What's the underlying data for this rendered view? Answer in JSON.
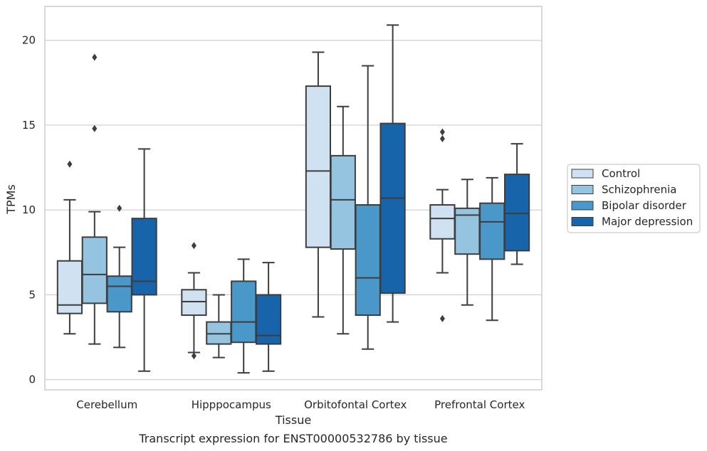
{
  "chart_data": {
    "type": "boxplot",
    "xlabel": "Tissue",
    "ylabel": "TPMs",
    "caption": "Transcript expression for ENST00000532786 by tissue",
    "ylim": [
      -0.6,
      22
    ],
    "yticks": [
      0,
      5,
      10,
      15,
      20
    ],
    "grid": true,
    "legend_position": "right",
    "categories": [
      "Cerebellum",
      "Hipppocampus",
      "Orbitofontal Cortex",
      "Prefrontal Cortex"
    ],
    "series": [
      {
        "name": "Control",
        "color": "#d0e1f2",
        "boxes": [
          {
            "whisker_low": 2.7,
            "q1": 3.9,
            "median": 4.4,
            "q3": 7.0,
            "whisker_high": 10.6,
            "outliers": [
              12.7
            ]
          },
          {
            "whisker_low": 1.6,
            "q1": 3.8,
            "median": 4.6,
            "q3": 5.3,
            "whisker_high": 6.3,
            "outliers": [
              7.9,
              1.4
            ]
          },
          {
            "whisker_low": 3.7,
            "q1": 7.8,
            "median": 12.3,
            "q3": 17.3,
            "whisker_high": 19.3,
            "outliers": []
          },
          {
            "whisker_low": 6.3,
            "q1": 8.3,
            "median": 9.5,
            "q3": 10.3,
            "whisker_high": 11.2,
            "outliers": [
              14.6,
              14.2,
              3.6
            ]
          }
        ]
      },
      {
        "name": "Schizophrenia",
        "color": "#94c4df",
        "boxes": [
          {
            "whisker_low": 2.1,
            "q1": 4.5,
            "median": 6.2,
            "q3": 8.4,
            "whisker_high": 9.9,
            "outliers": [
              19.0,
              14.8
            ]
          },
          {
            "whisker_low": 1.3,
            "q1": 2.1,
            "median": 2.7,
            "q3": 3.4,
            "whisker_high": 5.0,
            "outliers": []
          },
          {
            "whisker_low": 2.7,
            "q1": 7.7,
            "median": 10.6,
            "q3": 13.2,
            "whisker_high": 16.1,
            "outliers": []
          },
          {
            "whisker_low": 4.4,
            "q1": 7.4,
            "median": 9.7,
            "q3": 10.1,
            "whisker_high": 11.8,
            "outliers": []
          }
        ]
      },
      {
        "name": "Bipolar disorder",
        "color": "#4a98c9",
        "boxes": [
          {
            "whisker_low": 1.9,
            "q1": 4.0,
            "median": 5.5,
            "q3": 6.1,
            "whisker_high": 7.8,
            "outliers": [
              10.1
            ]
          },
          {
            "whisker_low": 0.4,
            "q1": 2.2,
            "median": 3.4,
            "q3": 5.8,
            "whisker_high": 7.1,
            "outliers": []
          },
          {
            "whisker_low": 1.8,
            "q1": 3.8,
            "median": 6.0,
            "q3": 10.3,
            "whisker_high": 18.5,
            "outliers": []
          },
          {
            "whisker_low": 3.5,
            "q1": 7.1,
            "median": 9.3,
            "q3": 10.4,
            "whisker_high": 11.9,
            "outliers": []
          }
        ]
      },
      {
        "name": "Major depression",
        "color": "#1764ab",
        "boxes": [
          {
            "whisker_low": 0.5,
            "q1": 5.0,
            "median": 5.8,
            "q3": 9.5,
            "whisker_high": 13.6,
            "outliers": []
          },
          {
            "whisker_low": 0.5,
            "q1": 2.1,
            "median": 2.6,
            "q3": 5.0,
            "whisker_high": 6.9,
            "outliers": []
          },
          {
            "whisker_low": 3.4,
            "q1": 5.1,
            "median": 10.7,
            "q3": 15.1,
            "whisker_high": 20.9,
            "outliers": []
          },
          {
            "whisker_low": 6.8,
            "q1": 7.6,
            "median": 9.8,
            "q3": 12.1,
            "whisker_high": 13.9,
            "outliers": []
          }
        ]
      }
    ]
  }
}
